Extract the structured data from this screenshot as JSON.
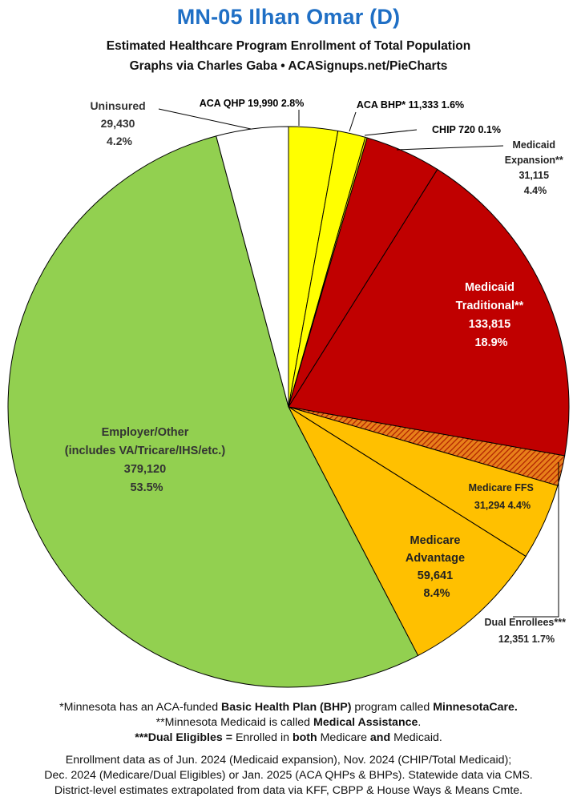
{
  "header": {
    "title": "MN-05 Ilhan Omar (D)",
    "subtitle1": "Estimated Healthcare Program Enrollment of Total Population",
    "subtitle2": "Graphs via Charles Gaba  •  ACASignups.net/PieCharts"
  },
  "chart_data": {
    "type": "pie",
    "title": "MN-05 Ilhan Omar (D)",
    "start_angle_deg": 0,
    "direction": "clockwise",
    "slices": [
      {
        "label": "ACA QHP",
        "value": 19990,
        "pct": "2.8%",
        "color": "#ffff00"
      },
      {
        "label": "ACA BHP*",
        "value": 11333,
        "pct": "1.6%",
        "color": "#ffff00"
      },
      {
        "label": "CHIP",
        "value": 720,
        "pct": "0.1%",
        "color": "#ffff00"
      },
      {
        "label": "Medicaid Expansion**",
        "value": 31115,
        "pct": "4.4%",
        "color": "#c00000"
      },
      {
        "label": "Medicaid Traditional**",
        "value": 133815,
        "pct": "18.9%",
        "color": "#c00000"
      },
      {
        "label": "Dual Enrollees***",
        "value": 12351,
        "pct": "1.7%",
        "color": "#e8801a",
        "pattern": "hatch"
      },
      {
        "label": "Medicare FFS",
        "value": 31294,
        "pct": "4.4%",
        "color": "#ffc000"
      },
      {
        "label": "Medicare Advantage",
        "value": 59641,
        "pct": "8.4%",
        "color": "#ffc000"
      },
      {
        "label": "Employer/Other (includes VA/Tricare/IHS/etc.)",
        "value": 379120,
        "pct": "53.5%",
        "color": "#92d050"
      },
      {
        "label": "Uninsured",
        "value": 29430,
        "pct": "4.2%",
        "color": "#ffffff"
      }
    ]
  },
  "labels": {
    "qhp": "ACA QHP 19,990 2.8%",
    "bhp": "ACA BHP* 11,333 1.6%",
    "chip": "CHIP 720 0.1%",
    "exp": [
      "Medicaid",
      "Expansion**",
      "31,115",
      "4.4%"
    ],
    "trad": [
      "Medicaid",
      "Traditional**",
      "133,815",
      "18.9%"
    ],
    "ffs": [
      "Medicare FFS",
      "31,294 4.4%"
    ],
    "dual": [
      "Dual Enrollees***",
      "12,351 1.7%"
    ],
    "adv": [
      "Medicare",
      "Advantage",
      "59,641",
      "8.4%"
    ],
    "emp": [
      "Employer/Other",
      "(includes VA/Tricare/IHS/etc.)",
      "379,120",
      "53.5%"
    ],
    "unins": [
      "Uninsured",
      "29,430",
      "4.2%"
    ]
  },
  "notes": {
    "n1a": "*Minnesota has an ACA-funded ",
    "n1b": "Basic Health Plan (BHP)",
    "n1c": " program called ",
    "n1d": "MinnesotaCare.",
    "n2a": "**Minnesota Medicaid is called ",
    "n2b": "Medical Assistance",
    "n2c": ".",
    "n3a": "***Dual Eligibles = ",
    "n3b": "Enrolled in ",
    "n3c": "both",
    "n3d": " Medicare ",
    "n3e": "and",
    "n3f": " Medicaid.",
    "f1": "Enrollment data as of Jun. 2024 (Medicaid expansion), Nov. 2024 (CHIP/Total Medicaid);",
    "f2": "Dec. 2024 (Medicare/Dual Eligibles) or Jan. 2025 (ACA QHPs & BHPs). Statewide data via CMS.",
    "f3": "District-level estimates extrapolated from data via KFF, CBPP & House Ways & Means Cmte."
  }
}
